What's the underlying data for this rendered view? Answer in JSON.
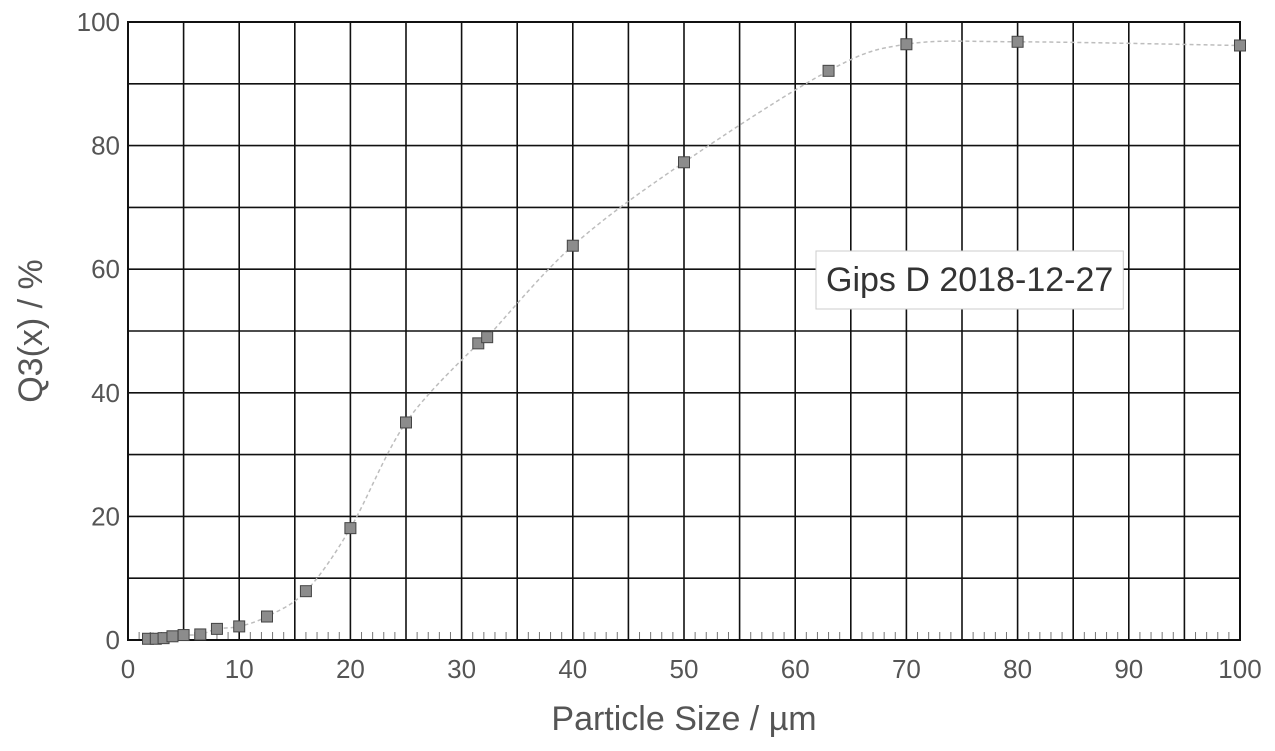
{
  "chart_data": {
    "type": "scatter",
    "xlabel": "Particle Size / µm",
    "ylabel": "Q3(x) / %",
    "xlim": [
      0,
      100
    ],
    "ylim": [
      0,
      100
    ],
    "xticks": [
      "0",
      "10",
      "20",
      "30",
      "40",
      "50",
      "60",
      "70",
      "80",
      "90",
      "100"
    ],
    "yticks": [
      "0",
      "20",
      "40",
      "60",
      "80",
      "100"
    ],
    "grid": true,
    "legend_position": "right",
    "series": [
      {
        "name": "Gips D 2018-12-27",
        "marker": "square",
        "color": "#8c8c8c",
        "line_color": "#bdbdbd",
        "x": [
          1.8,
          2.5,
          3.2,
          4.0,
          5.0,
          6.5,
          8.0,
          10.0,
          12.5,
          16.0,
          20.0,
          25.0,
          31.5,
          32.3,
          40.0,
          50.0,
          63.0,
          70.0,
          80.0,
          100.0
        ],
        "y": [
          0.2,
          0.2,
          0.3,
          0.6,
          0.8,
          0.9,
          1.8,
          2.2,
          3.8,
          7.9,
          18.1,
          35.2,
          48.0,
          49.0,
          63.8,
          77.3,
          92.1,
          96.4,
          96.8,
          96.2
        ]
      }
    ]
  }
}
